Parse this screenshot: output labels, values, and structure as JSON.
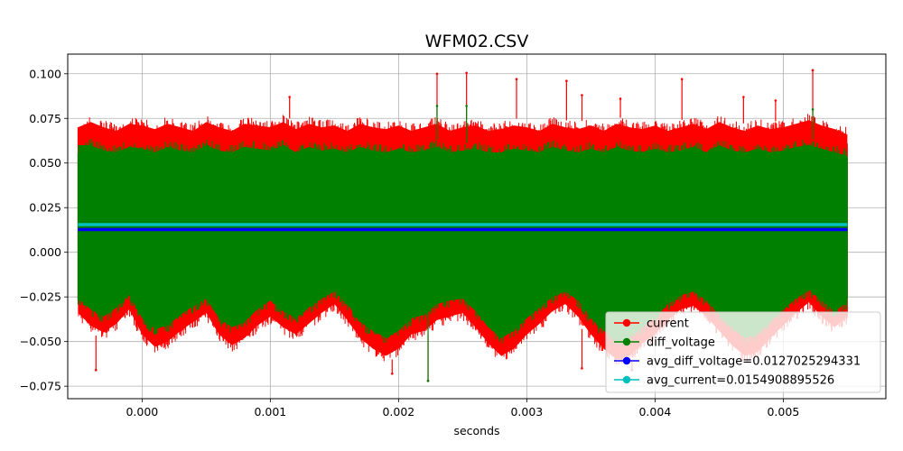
{
  "chart_data": {
    "type": "line",
    "title": "WFM02.CSV",
    "xlabel": "seconds",
    "ylabel": "",
    "xlim": [
      -0.00058,
      0.0058
    ],
    "ylim": [
      -0.082,
      0.111
    ],
    "x_ticks": [
      0.0,
      0.001,
      0.002,
      0.003,
      0.004,
      0.005
    ],
    "x_tick_labels": [
      "0.000",
      "0.001",
      "0.002",
      "0.003",
      "0.004",
      "0.005"
    ],
    "y_ticks": [
      -0.075,
      -0.05,
      -0.025,
      0.0,
      0.025,
      0.05,
      0.075,
      0.1
    ],
    "y_tick_labels": [
      "−0.075",
      "−0.050",
      "−0.025",
      "0.000",
      "0.025",
      "0.050",
      "0.075",
      "0.100"
    ],
    "grid": true,
    "legend_position": "lower right",
    "x_range": [
      -0.0005,
      0.0055
    ],
    "series": [
      {
        "name": "current",
        "color": "#ff0000",
        "marker": "circle",
        "envelope_x": [
          -0.0005,
          -0.0004,
          -0.0003,
          -0.0002,
          -0.0001,
          0.0,
          0.0001,
          0.0002,
          0.0003,
          0.0004,
          0.0005,
          0.0006,
          0.0007,
          0.0008,
          0.0009,
          0.001,
          0.0011,
          0.0012,
          0.0013,
          0.0014,
          0.0015,
          0.0016,
          0.0017,
          0.0018,
          0.0019,
          0.002,
          0.0021,
          0.0022,
          0.0023,
          0.0024,
          0.0025,
          0.0026,
          0.0027,
          0.0028,
          0.0029,
          0.003,
          0.0031,
          0.0032,
          0.0033,
          0.0034,
          0.0035,
          0.0036,
          0.0037,
          0.0038,
          0.0039,
          0.004,
          0.0041,
          0.0042,
          0.0043,
          0.0044,
          0.0045,
          0.0046,
          0.0047,
          0.0048,
          0.0049,
          0.005,
          0.0051,
          0.0052,
          0.0053,
          0.0054,
          0.0055
        ],
        "envelope_max": [
          0.07,
          0.077,
          0.074,
          0.072,
          0.076,
          0.075,
          0.073,
          0.076,
          0.074,
          0.072,
          0.077,
          0.074,
          0.072,
          0.076,
          0.075,
          0.074,
          0.077,
          0.073,
          0.076,
          0.074,
          0.075,
          0.072,
          0.076,
          0.074,
          0.073,
          0.075,
          0.072,
          0.074,
          0.076,
          0.072,
          0.074,
          0.075,
          0.072,
          0.073,
          0.075,
          0.074,
          0.072,
          0.076,
          0.074,
          0.073,
          0.075,
          0.072,
          0.076,
          0.074,
          0.073,
          0.075,
          0.072,
          0.074,
          0.076,
          0.073,
          0.077,
          0.074,
          0.072,
          0.075,
          0.073,
          0.074,
          0.076,
          0.078,
          0.075,
          0.073,
          0.07
        ],
        "envelope_min": [
          -0.038,
          -0.045,
          -0.049,
          -0.044,
          -0.036,
          -0.05,
          -0.057,
          -0.054,
          -0.048,
          -0.043,
          -0.038,
          -0.05,
          -0.056,
          -0.052,
          -0.045,
          -0.04,
          -0.046,
          -0.05,
          -0.044,
          -0.038,
          -0.033,
          -0.042,
          -0.052,
          -0.058,
          -0.062,
          -0.058,
          -0.05,
          -0.048,
          -0.042,
          -0.04,
          -0.038,
          -0.046,
          -0.055,
          -0.062,
          -0.058,
          -0.05,
          -0.044,
          -0.037,
          -0.033,
          -0.04,
          -0.05,
          -0.058,
          -0.064,
          -0.062,
          -0.055,
          -0.05,
          -0.042,
          -0.036,
          -0.034,
          -0.04,
          -0.048,
          -0.056,
          -0.062,
          -0.06,
          -0.052,
          -0.045,
          -0.038,
          -0.032,
          -0.04,
          -0.046,
          -0.04
        ],
        "spikes": [
          {
            "x": 0.0023,
            "y": 0.1
          },
          {
            "x": 0.00253,
            "y": 0.1005
          },
          {
            "x": 0.00292,
            "y": 0.097
          },
          {
            "x": 0.00331,
            "y": 0.096
          },
          {
            "x": 0.00421,
            "y": 0.097
          },
          {
            "x": 0.00523,
            "y": 0.102
          },
          {
            "x": 0.00115,
            "y": 0.087
          },
          {
            "x": 0.00343,
            "y": 0.088
          },
          {
            "x": 0.00373,
            "y": 0.086
          },
          {
            "x": 0.00469,
            "y": 0.087
          },
          {
            "x": 0.00494,
            "y": 0.085
          },
          {
            "x": -0.00036,
            "y": -0.066
          },
          {
            "x": 0.00195,
            "y": -0.068
          },
          {
            "x": 0.00223,
            "y": -0.072
          },
          {
            "x": 0.00343,
            "y": -0.065
          },
          {
            "x": 0.00382,
            "y": -0.066
          }
        ]
      },
      {
        "name": "diff_voltage",
        "color": "#008000",
        "marker": "circle",
        "envelope_x": [
          -0.0005,
          -0.0004,
          -0.0003,
          -0.0002,
          -0.0001,
          0.0,
          0.0001,
          0.0002,
          0.0003,
          0.0004,
          0.0005,
          0.0006,
          0.0007,
          0.0008,
          0.0009,
          0.001,
          0.0011,
          0.0012,
          0.0013,
          0.0014,
          0.0015,
          0.0016,
          0.0017,
          0.0018,
          0.0019,
          0.002,
          0.0021,
          0.0022,
          0.0023,
          0.0024,
          0.0025,
          0.0026,
          0.0027,
          0.0028,
          0.0029,
          0.003,
          0.0031,
          0.0032,
          0.0033,
          0.0034,
          0.0035,
          0.0036,
          0.0037,
          0.0038,
          0.0039,
          0.004,
          0.0041,
          0.0042,
          0.0043,
          0.0044,
          0.0045,
          0.0046,
          0.0047,
          0.0048,
          0.0049,
          0.005,
          0.0051,
          0.0052,
          0.0053,
          0.0054,
          0.0055
        ],
        "envelope_max": [
          0.06,
          0.064,
          0.061,
          0.06,
          0.063,
          0.062,
          0.06,
          0.063,
          0.061,
          0.06,
          0.064,
          0.061,
          0.06,
          0.063,
          0.062,
          0.061,
          0.064,
          0.06,
          0.063,
          0.061,
          0.062,
          0.06,
          0.063,
          0.061,
          0.06,
          0.062,
          0.06,
          0.061,
          0.063,
          0.06,
          0.061,
          0.062,
          0.06,
          0.06,
          0.062,
          0.061,
          0.06,
          0.063,
          0.061,
          0.06,
          0.062,
          0.06,
          0.063,
          0.061,
          0.06,
          0.062,
          0.06,
          0.061,
          0.063,
          0.06,
          0.064,
          0.061,
          0.06,
          0.062,
          0.06,
          0.061,
          0.063,
          0.064,
          0.062,
          0.06,
          0.058
        ],
        "envelope_min": [
          -0.03,
          -0.036,
          -0.04,
          -0.035,
          -0.028,
          -0.041,
          -0.047,
          -0.045,
          -0.039,
          -0.034,
          -0.03,
          -0.041,
          -0.046,
          -0.043,
          -0.036,
          -0.031,
          -0.037,
          -0.041,
          -0.035,
          -0.03,
          -0.026,
          -0.033,
          -0.043,
          -0.048,
          -0.052,
          -0.048,
          -0.041,
          -0.039,
          -0.033,
          -0.031,
          -0.03,
          -0.037,
          -0.046,
          -0.052,
          -0.048,
          -0.041,
          -0.035,
          -0.029,
          -0.026,
          -0.031,
          -0.041,
          -0.048,
          -0.054,
          -0.052,
          -0.046,
          -0.041,
          -0.033,
          -0.028,
          -0.026,
          -0.031,
          -0.039,
          -0.046,
          -0.052,
          -0.05,
          -0.043,
          -0.036,
          -0.03,
          -0.025,
          -0.031,
          -0.037,
          -0.032
        ],
        "spikes": [
          {
            "x": 0.0023,
            "y": 0.082
          },
          {
            "x": 0.00253,
            "y": 0.082
          },
          {
            "x": 0.00523,
            "y": 0.08
          },
          {
            "x": 0.00223,
            "y": -0.072
          }
        ]
      },
      {
        "name": "avg_diff_voltage=0.0127025294331",
        "color": "#0000ff",
        "marker": "circle",
        "x": [
          -0.0005,
          0.0055
        ],
        "y": [
          0.0127025294331,
          0.0127025294331
        ]
      },
      {
        "name": "avg_current=0.0154908895526",
        "color": "#00bfbf",
        "marker": "circle",
        "x": [
          -0.0005,
          0.0055
        ],
        "y": [
          0.0154908895526,
          0.0154908895526
        ]
      }
    ]
  }
}
